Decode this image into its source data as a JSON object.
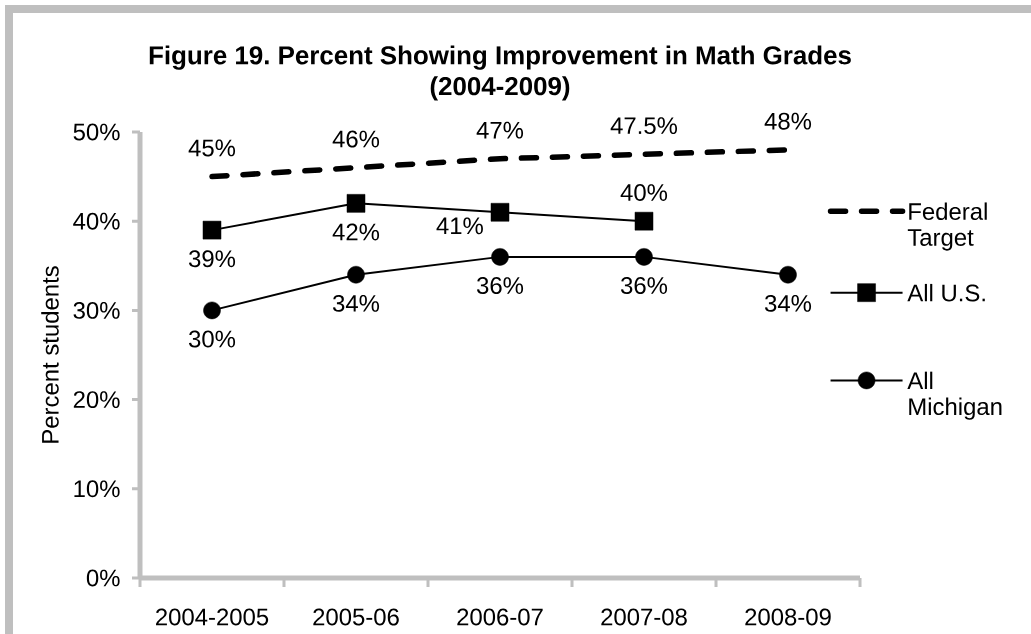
{
  "chart_data": {
    "type": "line",
    "title": "Figure 19. Percent Showing Improvement in Math Grades (2004-2009)",
    "ylabel": "Percent students",
    "categories": [
      "2004-2005",
      "2005-06",
      "2006-07",
      "2007-08",
      "2008-09"
    ],
    "series": [
      {
        "name": "Federal Target",
        "color": "#000000",
        "line_style": "dashed",
        "marker": "none",
        "values": [
          45,
          46,
          47,
          47.5,
          48
        ],
        "value_labels": [
          "45%",
          "46%",
          "47%",
          "47.5%",
          "48%"
        ]
      },
      {
        "name": "All U.S.",
        "color": "#000000",
        "line_style": "solid",
        "marker": "square",
        "values": [
          39,
          42,
          41,
          40,
          null
        ],
        "value_labels": [
          "39%",
          "42%",
          "41%",
          "40%",
          null
        ]
      },
      {
        "name": "All Michigan",
        "color": "#000000",
        "line_style": "solid",
        "marker": "circle",
        "values": [
          30,
          34,
          36,
          36,
          34
        ],
        "value_labels": [
          "30%",
          "34%",
          "36%",
          "36%",
          "34%"
        ]
      }
    ],
    "ylim": [
      0,
      50
    ],
    "yticks": [
      {
        "value": 0,
        "label": "0%"
      },
      {
        "value": 10,
        "label": "10%"
      },
      {
        "value": 20,
        "label": "20%"
      },
      {
        "value": 30,
        "label": "30%"
      },
      {
        "value": 40,
        "label": "40%"
      },
      {
        "value": 50,
        "label": "50%"
      }
    ],
    "legend": "right"
  }
}
